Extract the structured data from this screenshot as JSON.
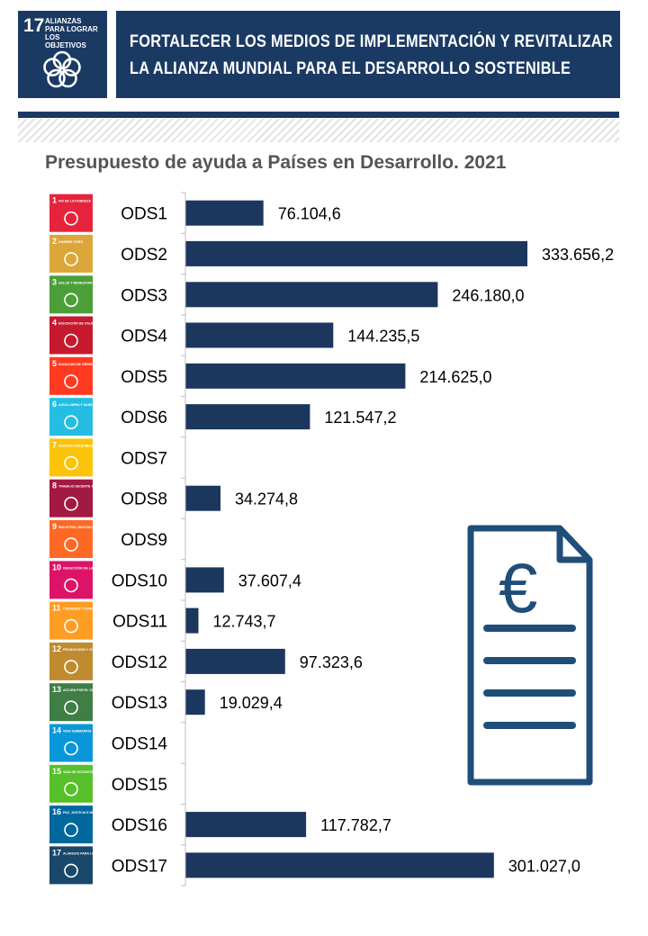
{
  "header": {
    "logo_number": "17",
    "logo_text": "ALIANZAS PARA LOGRAR LOS OBJETIVOS",
    "banner_line1": "FORTALECER LOS MEDIOS DE IMPLEMENTACIÓN Y REVITALIZAR",
    "banner_line2": "LA ALIANZA MUNDIAL PARA EL DESARROLLO SOSTENIBLE",
    "brand_color": "#1a3a64"
  },
  "chart_data": {
    "type": "bar",
    "orientation": "horizontal",
    "title": "Presupuesto de ayuda a Países en Desarrollo. 2021",
    "xlabel": "",
    "ylabel": "",
    "bar_color": "#1c375e",
    "grid": false,
    "categories": [
      "ODS1",
      "ODS2",
      "ODS3",
      "ODS4",
      "ODS5",
      "ODS6",
      "ODS7",
      "ODS8",
      "ODS9",
      "ODS10",
      "ODS11",
      "ODS12",
      "ODS13",
      "ODS14",
      "ODS15",
      "ODS16",
      "ODS17"
    ],
    "values": [
      76104.6,
      333656.2,
      246180.0,
      144235.5,
      214625.0,
      121547.2,
      null,
      34274.8,
      null,
      37607.4,
      12743.7,
      97323.6,
      19029.4,
      null,
      null,
      117782.7,
      301027.0
    ],
    "data_labels": [
      "76.104,6",
      "333.656,2",
      "246.180,0",
      "144.235,5",
      "214.625,0",
      "121.547,2",
      "",
      "34.274,8",
      "",
      "37.607,4",
      "12.743,7",
      "97.323,6",
      "19.029,4",
      "",
      "",
      "117.782,7",
      "301.027,0"
    ],
    "xlim": [
      0,
      333656.2
    ]
  },
  "sdg_icons": [
    {
      "number": "1",
      "label": "FIN DE LA POBREZA",
      "color": "#e5243b"
    },
    {
      "number": "2",
      "label": "HAMBRE CERO",
      "color": "#dda63a"
    },
    {
      "number": "3",
      "label": "SALUD Y BIENESTAR",
      "color": "#4c9f38"
    },
    {
      "number": "4",
      "label": "EDUCACIÓN DE CALIDAD",
      "color": "#c5192d"
    },
    {
      "number": "5",
      "label": "IGUALDAD DE GÉNERO",
      "color": "#ff3a21"
    },
    {
      "number": "6",
      "label": "AGUA LIMPIA Y SANEAMIENTO",
      "color": "#26bde2"
    },
    {
      "number": "7",
      "label": "ENERGÍA ASEQUIBLE Y NO CONTAMINANTE",
      "color": "#fcc30b"
    },
    {
      "number": "8",
      "label": "TRABAJO DECENTE Y CRECIMIENTO ECONÓMICO",
      "color": "#a21942"
    },
    {
      "number": "9",
      "label": "INDUSTRIA, INNOVACIÓN E INFRAESTRUCTURA",
      "color": "#fd6925"
    },
    {
      "number": "10",
      "label": "REDUCCIÓN DE LAS DESIGUALDADES",
      "color": "#dd1367"
    },
    {
      "number": "11",
      "label": "CIUDADES Y COMUNIDADES SOSTENIBLES",
      "color": "#fd9d24"
    },
    {
      "number": "12",
      "label": "PRODUCCIÓN Y CONSUMO RESPONSABLES",
      "color": "#bf8b2e"
    },
    {
      "number": "13",
      "label": "ACCIÓN POR EL CLIMA",
      "color": "#3f7e44"
    },
    {
      "number": "14",
      "label": "VIDA SUBMARINA",
      "color": "#0a97d9"
    },
    {
      "number": "15",
      "label": "VIDA DE ECOSISTEMAS TERRESTRES",
      "color": "#56c02b"
    },
    {
      "number": "16",
      "label": "PAZ, JUSTICIA E INSTITUCIONES SÓLIDAS",
      "color": "#00689d"
    },
    {
      "number": "17",
      "label": "ALIANZAS PARA LOGRAR LOS OBJETIVOS",
      "color": "#19486a"
    }
  ],
  "illustration": {
    "icon": "euro-document-icon",
    "symbol": "€",
    "color": "#1f4e79"
  }
}
